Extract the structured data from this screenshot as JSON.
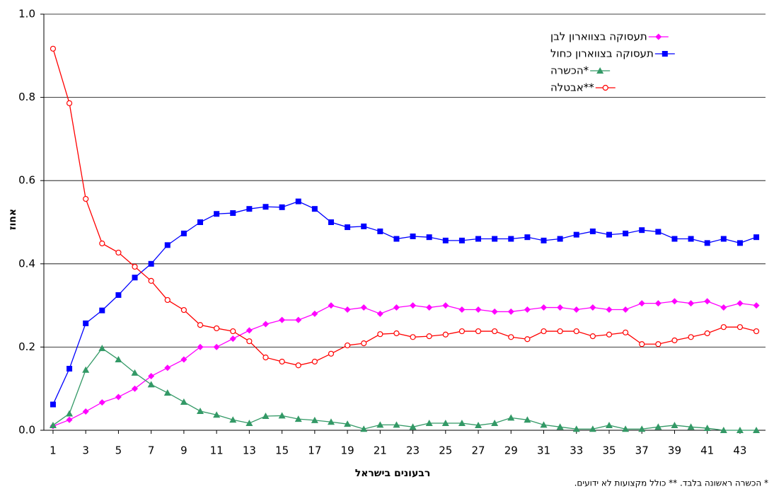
{
  "chart_data": {
    "type": "line",
    "y_label": "אחוז",
    "x_label": "רבעונים בישראל",
    "footnote": "* הכשרה ראשונה בלבד. ** כולל מקצועות לא ידועים.",
    "x": [
      1,
      2,
      3,
      4,
      5,
      6,
      7,
      8,
      9,
      10,
      11,
      12,
      13,
      14,
      15,
      16,
      17,
      18,
      19,
      20,
      21,
      22,
      23,
      24,
      25,
      26,
      27,
      28,
      29,
      30,
      31,
      32,
      33,
      34,
      35,
      36,
      37,
      38,
      39,
      40,
      41,
      42,
      43,
      44
    ],
    "xlim": [
      0.44,
      44.56
    ],
    "xticks": [
      1,
      3,
      5,
      7,
      9,
      11,
      13,
      15,
      17,
      19,
      21,
      23,
      25,
      27,
      29,
      31,
      33,
      35,
      37,
      39,
      41,
      43
    ],
    "ylim": [
      0,
      1
    ],
    "yticks": [
      {
        "value": 0,
        "label": "0.0"
      },
      0.2,
      0.4,
      0.6,
      0.8,
      {
        "value": 1,
        "label": "1.0"
      }
    ],
    "grid": true,
    "legend": "top-right",
    "series": [
      {
        "name": "תעסוקה בצווארון לבן",
        "color": "#ff00ff",
        "marker": "diamond",
        "values": [
          0.01,
          0.025,
          0.045,
          0.067,
          0.08,
          0.1,
          0.13,
          0.15,
          0.17,
          0.2,
          0.2,
          0.22,
          0.24,
          0.255,
          0.265,
          0.265,
          0.28,
          0.3,
          0.29,
          0.295,
          0.28,
          0.295,
          0.3,
          0.295,
          0.3,
          0.29,
          0.29,
          0.285,
          0.285,
          0.29,
          0.295,
          0.295,
          0.29,
          0.295,
          0.29,
          0.29,
          0.305,
          0.305,
          0.31,
          0.305,
          0.31,
          0.295,
          0.305,
          0.3
        ]
      },
      {
        "name": "תעסוקה בצווארון כחול",
        "color": "#0000ff",
        "marker": "square",
        "values": [
          0.062,
          0.148,
          0.257,
          0.288,
          0.325,
          0.367,
          0.4,
          0.445,
          0.473,
          0.5,
          0.52,
          0.522,
          0.532,
          0.537,
          0.536,
          0.55,
          0.532,
          0.5,
          0.488,
          0.49,
          0.478,
          0.46,
          0.466,
          0.464,
          0.456,
          0.456,
          0.46,
          0.46,
          0.46,
          0.464,
          0.456,
          0.46,
          0.47,
          0.478,
          0.47,
          0.473,
          0.481,
          0.477,
          0.46,
          0.46,
          0.45,
          0.46,
          0.45,
          0.464
        ]
      },
      {
        "name": "הכשרה*",
        "color": "#339966",
        "marker": "triangle",
        "values": [
          0.012,
          0.04,
          0.145,
          0.197,
          0.17,
          0.138,
          0.11,
          0.09,
          0.068,
          0.046,
          0.037,
          0.025,
          0.017,
          0.034,
          0.035,
          0.027,
          0.024,
          0.02,
          0.015,
          0.003,
          0.013,
          0.013,
          0.008,
          0.017,
          0.017,
          0.017,
          0.012,
          0.017,
          0.03,
          0.025,
          0.013,
          0.008,
          0.003,
          0.003,
          0.012,
          0.003,
          0.003,
          0.008,
          0.012,
          0.008,
          0.005,
          0,
          0,
          0
        ]
      },
      {
        "name": "אבטלה**",
        "color": "#ff0000",
        "marker": "circle-open",
        "values": [
          0.917,
          0.786,
          0.556,
          0.449,
          0.427,
          0.393,
          0.359,
          0.313,
          0.289,
          0.253,
          0.245,
          0.238,
          0.214,
          0.175,
          0.165,
          0.156,
          0.165,
          0.184,
          0.204,
          0.209,
          0.231,
          0.233,
          0.224,
          0.226,
          0.23,
          0.238,
          0.238,
          0.238,
          0.224,
          0.219,
          0.238,
          0.238,
          0.238,
          0.226,
          0.23,
          0.235,
          0.207,
          0.207,
          0.216,
          0.224,
          0.233,
          0.248,
          0.248,
          0.238
        ]
      }
    ]
  }
}
